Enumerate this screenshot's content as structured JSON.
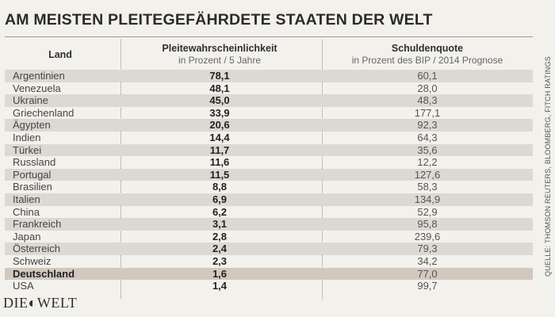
{
  "title": "AM MEISTEN PLEITEGEFÄHRDETE STAATEN DER WELT",
  "columns": {
    "land": "Land",
    "prob": {
      "header": "Pleitewahrscheinlichkeit",
      "sub": "in Prozent / 5 Jahre"
    },
    "debt": {
      "header": "Schuldenquote",
      "sub": "in Prozent des BIP / 2014 Prognose"
    }
  },
  "source": "QUELLE: THOMSON REUTERS, BLOOMBERG, FITCH RATINGS",
  "logo": "DIE◐WELT",
  "chart_data": {
    "type": "table",
    "title": "AM MEISTEN PLEITEGEFÄHRDETE STAATEN DER WELT",
    "columns": [
      "Land",
      "Pleitewahrscheinlichkeit in Prozent / 5 Jahre",
      "Schuldenquote in Prozent des BIP / 2014 Prognose"
    ],
    "highlight": "Deutschland",
    "rows": [
      {
        "land": "Argentinien",
        "prob": "78,1",
        "debt": "60,1"
      },
      {
        "land": "Venezuela",
        "prob": "48,1",
        "debt": "28,0"
      },
      {
        "land": "Ukraine",
        "prob": "45,0",
        "debt": "48,3"
      },
      {
        "land": "Griechenland",
        "prob": "33,9",
        "debt": "177,1"
      },
      {
        "land": "Ägypten",
        "prob": "20,6",
        "debt": "92,3"
      },
      {
        "land": "Indien",
        "prob": "14,4",
        "debt": "64,3"
      },
      {
        "land": "Türkei",
        "prob": "11,7",
        "debt": "35,6"
      },
      {
        "land": "Russland",
        "prob": "11,6",
        "debt": "12,2"
      },
      {
        "land": "Portugal",
        "prob": "11,5",
        "debt": "127,6"
      },
      {
        "land": "Brasilien",
        "prob": "8,8",
        "debt": "58,3"
      },
      {
        "land": "Italien",
        "prob": "6,9",
        "debt": "134,9"
      },
      {
        "land": "China",
        "prob": "6,2",
        "debt": "52,9"
      },
      {
        "land": "Frankreich",
        "prob": "3,1",
        "debt": "95,8"
      },
      {
        "land": "Japan",
        "prob": "2,8",
        "debt": "239,6"
      },
      {
        "land": "Österreich",
        "prob": "2,4",
        "debt": "79,3"
      },
      {
        "land": "Schweiz",
        "prob": "2,3",
        "debt": "34,2"
      },
      {
        "land": "Deutschland",
        "prob": "1,6",
        "debt": "77,0"
      },
      {
        "land": "USA",
        "prob": "1,4",
        "debt": "99,7"
      }
    ]
  }
}
